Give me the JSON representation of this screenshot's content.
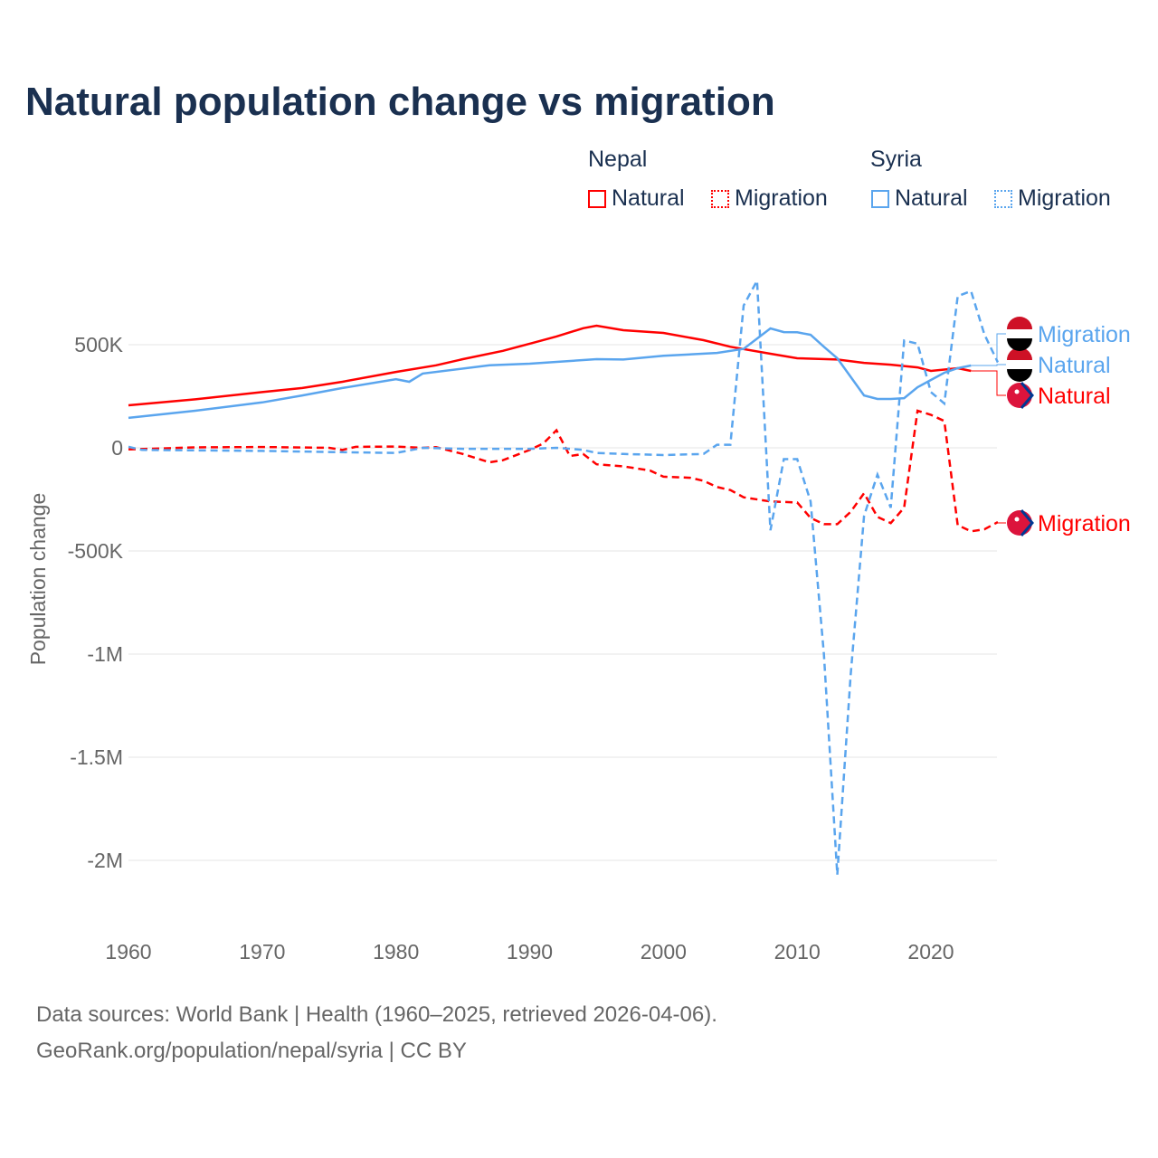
{
  "title": "Natural population change vs migration",
  "legend": {
    "groups": [
      {
        "name": "Nepal",
        "items": [
          "Natural",
          "Migration"
        ]
      },
      {
        "name": "Syria",
        "items": [
          "Natural",
          "Migration"
        ]
      }
    ]
  },
  "footer": {
    "line1": "Data sources: World Bank | Health (1960–2025, retrieved 2026-04-06).",
    "line2": "GeoRank.org/population/nepal/syria | CC BY"
  },
  "chart_data": {
    "type": "line",
    "title": "Natural population change vs migration",
    "xlabel": "",
    "ylabel": "Population change",
    "xlim": [
      1960,
      2025
    ],
    "ylim": [
      -2100000,
      820000
    ],
    "x_ticks": [
      1960,
      1970,
      1980,
      1990,
      2000,
      2010,
      2020
    ],
    "x_tick_labels": [
      "1960",
      "1970",
      "1980",
      "1990",
      "2000",
      "2010",
      "2020"
    ],
    "y_ticks": [
      500000,
      0,
      -500000,
      -1000000,
      -1500000,
      -2000000
    ],
    "y_tick_labels": [
      "500K",
      "0",
      "-500K",
      "-1M",
      "-1.5M",
      "-2M"
    ],
    "grid": true,
    "colors": {
      "Nepal": "#ff0000",
      "Syria": "#5aa5ee"
    },
    "series": [
      {
        "name": "Natural",
        "country": "Nepal",
        "style": "solid",
        "label": "Natural",
        "points": [
          [
            1960,
            206000
          ],
          [
            1965,
            235000
          ],
          [
            1970,
            270000
          ],
          [
            1973,
            290000
          ],
          [
            1976,
            320000
          ],
          [
            1980,
            368000
          ],
          [
            1983,
            400000
          ],
          [
            1985,
            430000
          ],
          [
            1988,
            470000
          ],
          [
            1990,
            505000
          ],
          [
            1992,
            540000
          ],
          [
            1994,
            580000
          ],
          [
            1995,
            592000
          ],
          [
            1997,
            570000
          ],
          [
            2000,
            557000
          ],
          [
            2003,
            522000
          ],
          [
            2005,
            490000
          ],
          [
            2008,
            456000
          ],
          [
            2010,
            434000
          ],
          [
            2013,
            428000
          ],
          [
            2015,
            412000
          ],
          [
            2017,
            403000
          ],
          [
            2019,
            390000
          ],
          [
            2020,
            373000
          ],
          [
            2022,
            386000
          ],
          [
            2023,
            373000
          ]
        ]
      },
      {
        "name": "Migration",
        "country": "Nepal",
        "style": "dashed",
        "label": "Migration",
        "points": [
          [
            1960,
            -8000
          ],
          [
            1965,
            2000
          ],
          [
            1970,
            4000
          ],
          [
            1975,
            0
          ],
          [
            1976,
            -10000
          ],
          [
            1977,
            5000
          ],
          [
            1980,
            6000
          ],
          [
            1982,
            0
          ],
          [
            1983,
            3000
          ],
          [
            1985,
            -30000
          ],
          [
            1987,
            -70000
          ],
          [
            1988,
            -60000
          ],
          [
            1990,
            -10000
          ],
          [
            1991,
            20000
          ],
          [
            1992,
            85000
          ],
          [
            1993,
            -40000
          ],
          [
            1994,
            -30000
          ],
          [
            1995,
            -80000
          ],
          [
            1997,
            -90000
          ],
          [
            1999,
            -110000
          ],
          [
            2000,
            -140000
          ],
          [
            2002,
            -145000
          ],
          [
            2003,
            -160000
          ],
          [
            2004,
            -190000
          ],
          [
            2005,
            -205000
          ],
          [
            2006,
            -240000
          ],
          [
            2008,
            -260000
          ],
          [
            2010,
            -265000
          ],
          [
            2011,
            -340000
          ],
          [
            2012,
            -370000
          ],
          [
            2013,
            -370000
          ],
          [
            2014,
            -310000
          ],
          [
            2015,
            -220000
          ],
          [
            2016,
            -335000
          ],
          [
            2017,
            -365000
          ],
          [
            2018,
            -290000
          ],
          [
            2019,
            180000
          ],
          [
            2020,
            160000
          ],
          [
            2021,
            130000
          ],
          [
            2022,
            -375000
          ],
          [
            2023,
            -405000
          ],
          [
            2024,
            -395000
          ],
          [
            2025,
            -360000
          ]
        ]
      },
      {
        "name": "Natural",
        "country": "Syria",
        "style": "solid",
        "label": "Natural",
        "points": [
          [
            1960,
            145000
          ],
          [
            1965,
            180000
          ],
          [
            1970,
            220000
          ],
          [
            1973,
            254000
          ],
          [
            1976,
            290000
          ],
          [
            1980,
            333000
          ],
          [
            1981,
            320000
          ],
          [
            1982,
            360000
          ],
          [
            1987,
            400000
          ],
          [
            1990,
            408000
          ],
          [
            1995,
            430000
          ],
          [
            1997,
            428000
          ],
          [
            2000,
            446000
          ],
          [
            2004,
            460000
          ],
          [
            2006,
            480000
          ],
          [
            2008,
            579000
          ],
          [
            2009,
            561000
          ],
          [
            2010,
            560000
          ],
          [
            2011,
            548000
          ],
          [
            2012,
            490000
          ],
          [
            2013,
            434000
          ],
          [
            2015,
            254000
          ],
          [
            2016,
            237000
          ],
          [
            2017,
            237000
          ],
          [
            2018,
            241000
          ],
          [
            2019,
            294000
          ],
          [
            2020,
            329000
          ],
          [
            2021,
            364000
          ],
          [
            2022,
            386000
          ],
          [
            2023,
            399000
          ]
        ]
      },
      {
        "name": "Migration",
        "country": "Syria",
        "style": "dashed",
        "label": "Migration",
        "points": [
          [
            1960,
            5000
          ],
          [
            1961,
            -10000
          ],
          [
            1970,
            -15000
          ],
          [
            1975,
            -20000
          ],
          [
            1980,
            -25000
          ],
          [
            1982,
            0
          ],
          [
            1985,
            -5000
          ],
          [
            1990,
            -5000
          ],
          [
            1992,
            0
          ],
          [
            1994,
            -10000
          ],
          [
            1995,
            -25000
          ],
          [
            1997,
            -30000
          ],
          [
            2000,
            -35000
          ],
          [
            2003,
            -30000
          ],
          [
            2004,
            15000
          ],
          [
            2005,
            15000
          ],
          [
            2006,
            690000
          ],
          [
            2007,
            810000
          ],
          [
            2008,
            -400000
          ],
          [
            2009,
            -55000
          ],
          [
            2010,
            -55000
          ],
          [
            2011,
            -260000
          ],
          [
            2012,
            -1000000
          ],
          [
            2013,
            -2070000
          ],
          [
            2014,
            -1100000
          ],
          [
            2015,
            -330000
          ],
          [
            2016,
            -130000
          ],
          [
            2017,
            -290000
          ],
          [
            2018,
            520000
          ],
          [
            2019,
            505000
          ],
          [
            2020,
            270000
          ],
          [
            2021,
            215000
          ],
          [
            2022,
            735000
          ],
          [
            2023,
            760000
          ],
          [
            2024,
            550000
          ],
          [
            2025,
            415000
          ]
        ]
      }
    ]
  }
}
